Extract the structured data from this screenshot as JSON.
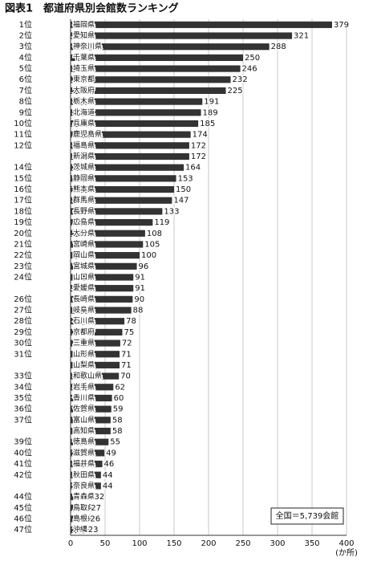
{
  "chart_data": {
    "type": "barh",
    "title": "図表1　都道府県別会館数ランキング",
    "ranks": [
      "1位",
      "2位",
      "3位",
      "4位",
      "5位",
      "6位",
      "7位",
      "8位",
      "9位",
      "10位",
      "11位",
      "12位",
      null,
      "14位",
      "15位",
      "16位",
      "17位",
      "18位",
      "19位",
      "20位",
      "21位",
      "22位",
      "23位",
      "24位",
      null,
      "26位",
      "27位",
      "28位",
      "29位",
      "30位",
      "31位",
      null,
      "33位",
      "34位",
      "35位",
      "36位",
      "37位",
      null,
      "39位",
      "40位",
      "41位",
      "42位",
      null,
      "44位",
      "45位",
      "46位",
      "47位"
    ],
    "categories": [
      "福岡県",
      "愛知県",
      "神奈川県",
      "千葉県",
      "埼玉県",
      "東京都",
      "大阪府",
      "栃木県",
      "北海道",
      "兵庫県",
      "鹿児島県",
      "福島県",
      "新潟県",
      "茨城県",
      "静岡県",
      "熊本県",
      "群馬県",
      "長野県",
      "広島県",
      "大分県",
      "宮崎県",
      "岡山県",
      "宮城県",
      "山口県",
      "愛媛県",
      "長崎県",
      "岐阜県",
      "石川県",
      "京都府",
      "三重県",
      "山形県",
      "山梨県",
      "和歌山県",
      "岩手県",
      "香川県",
      "佐賀県",
      "富山県",
      "高知県",
      "徳島県",
      "滋賀県",
      "福井県",
      "秋田県",
      "奈良県",
      "青森県",
      "鳥取県",
      "島根県",
      "沖縄県"
    ],
    "values": [
      379,
      321,
      288,
      250,
      246,
      232,
      225,
      191,
      189,
      185,
      174,
      172,
      172,
      164,
      153,
      150,
      147,
      133,
      119,
      108,
      105,
      100,
      96,
      91,
      91,
      90,
      88,
      78,
      75,
      72,
      71,
      71,
      70,
      62,
      60,
      59,
      58,
      58,
      55,
      49,
      46,
      44,
      44,
      32,
      27,
      26,
      23
    ],
    "color": "#333333",
    "xlim": [
      0,
      400
    ],
    "xticks": [
      0,
      50,
      100,
      150,
      200,
      250,
      300,
      350,
      400
    ],
    "x_unit": "(か所)",
    "grid": true,
    "annotation": "全国＝5,739会館"
  }
}
